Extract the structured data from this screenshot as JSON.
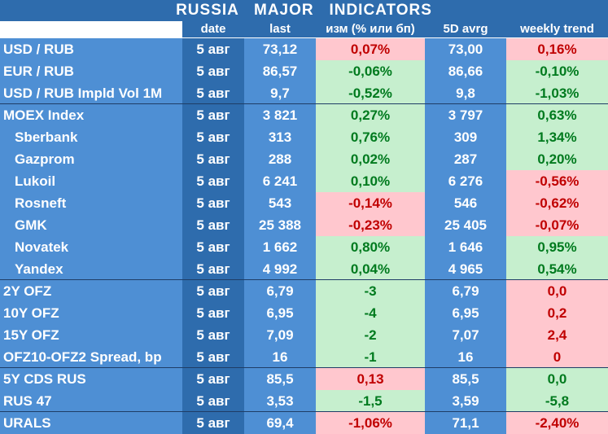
{
  "title": "RUSSIA   MAJOR   INDICATORS",
  "headers": [
    "date",
    "last",
    "изм (% или бп)",
    "5D avrg",
    "weekly trend"
  ],
  "rows": [
    {
      "name": "USD / RUB",
      "date": "5 авг",
      "last": "73,12",
      "chg": "0,07%",
      "chg_sign": "neg",
      "avg": "73,00",
      "trend": "0,16%",
      "trend_sign": "neg"
    },
    {
      "name": "EUR / RUB",
      "date": "5 авг",
      "last": "86,57",
      "chg": "-0,06%",
      "chg_sign": "pos",
      "avg": "86,66",
      "trend": "-0,10%",
      "trend_sign": "pos"
    },
    {
      "name": "USD / RUB Impld Vol 1M",
      "date": "5 авг",
      "last": "9,7",
      "chg": "-0,52%",
      "chg_sign": "pos",
      "avg": "9,8",
      "trend": "-1,03%",
      "trend_sign": "pos"
    },
    {
      "name": "MOEX Index",
      "date": "5 авг",
      "last": "3 821",
      "chg": "0,27%",
      "chg_sign": "pos",
      "avg": "3 797",
      "trend": "0,63%",
      "trend_sign": "pos"
    },
    {
      "name": "Sberbank",
      "date": "5 авг",
      "last": "313",
      "chg": "0,76%",
      "chg_sign": "pos",
      "avg": "309",
      "trend": "1,34%",
      "trend_sign": "pos"
    },
    {
      "name": "Gazprom",
      "date": "5 авг",
      "last": "288",
      "chg": "0,02%",
      "chg_sign": "pos",
      "avg": "287",
      "trend": "0,20%",
      "trend_sign": "pos"
    },
    {
      "name": "Lukoil",
      "date": "5 авг",
      "last": "6 241",
      "chg": "0,10%",
      "chg_sign": "pos",
      "avg": "6 276",
      "trend": "-0,56%",
      "trend_sign": "neg"
    },
    {
      "name": "Rosneft",
      "date": "5 авг",
      "last": "543",
      "chg": "-0,14%",
      "chg_sign": "neg",
      "avg": "546",
      "trend": "-0,62%",
      "trend_sign": "neg"
    },
    {
      "name": "GMK",
      "date": "5 авг",
      "last": "25 388",
      "chg": "-0,23%",
      "chg_sign": "neg",
      "avg": "25 405",
      "trend": "-0,07%",
      "trend_sign": "neg"
    },
    {
      "name": "Novatek",
      "date": "5 авг",
      "last": "1 662",
      "chg": "0,80%",
      "chg_sign": "pos",
      "avg": "1 646",
      "trend": "0,95%",
      "trend_sign": "pos"
    },
    {
      "name": "Yandex",
      "date": "5 авг",
      "last": "4 992",
      "chg": "0,04%",
      "chg_sign": "pos",
      "avg": "4 965",
      "trend": "0,54%",
      "trend_sign": "pos"
    },
    {
      "name": "2Y OFZ",
      "date": "5 авг",
      "last": "6,79",
      "chg": "-3",
      "chg_sign": "pos",
      "avg": "6,79",
      "trend": "0,0",
      "trend_sign": "neg"
    },
    {
      "name": "10Y OFZ",
      "date": "5 авг",
      "last": "6,95",
      "chg": "-4",
      "chg_sign": "pos",
      "avg": "6,95",
      "trend": "0,2",
      "trend_sign": "neg"
    },
    {
      "name": "15Y OFZ",
      "date": "5 авг",
      "last": "7,09",
      "chg": "-2",
      "chg_sign": "pos",
      "avg": "7,07",
      "trend": "2,4",
      "trend_sign": "neg"
    },
    {
      "name": "OFZ10-OFZ2 Spread, bp",
      "date": "5 авг",
      "last": "16",
      "chg": "-1",
      "chg_sign": "pos",
      "avg": "16",
      "trend": "0",
      "trend_sign": "neg"
    },
    {
      "name": "5Y CDS RUS",
      "date": "5 авг",
      "last": "85,5",
      "chg": "0,13",
      "chg_sign": "neg",
      "avg": "85,5",
      "trend": "0,0",
      "trend_sign": "pos"
    },
    {
      "name": "RUS 47",
      "date": "5 авг",
      "last": "3,53",
      "chg": "-1,5",
      "chg_sign": "pos",
      "avg": "3,59",
      "trend": "-5,8",
      "trend_sign": "pos"
    },
    {
      "name": "URALS",
      "date": "5 авг",
      "last": "69,4",
      "chg": "-1,06%",
      "chg_sign": "neg",
      "avg": "71,1",
      "trend": "-2,40%",
      "trend_sign": "neg"
    }
  ],
  "colors": {
    "header_blue": "#2e6cad",
    "light_blue": "#4e8fd4",
    "positive_bg": "#c6efce",
    "positive_text": "#007a1e",
    "negative_bg": "#ffc7ce",
    "negative_text": "#c00000"
  }
}
